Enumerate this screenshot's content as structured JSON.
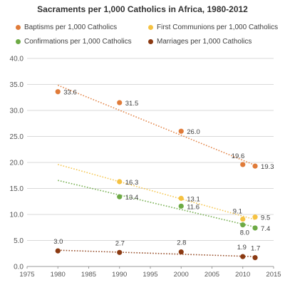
{
  "chart_data": {
    "type": "scatter",
    "title": "Sacraments per 1,000 Catholics in Africa, 1980-2012",
    "xlabel": "",
    "ylabel": "",
    "xlim": [
      1975,
      2015
    ],
    "ylim": [
      0,
      40
    ],
    "x_ticks": [
      1975,
      1980,
      1985,
      1990,
      1995,
      2000,
      2005,
      2010,
      2015
    ],
    "y_ticks": [
      "0.0",
      "5.0",
      "10.0",
      "15.0",
      "20.0",
      "25.0",
      "30.0",
      "35.0",
      "40.0"
    ],
    "grid": "horizontal",
    "legend_position": "top",
    "trendlines": "linear, dotted",
    "series": [
      {
        "name": "Baptisms per 1,000 Catholics",
        "color": "#E07B39",
        "x": [
          1980,
          1990,
          2000,
          2010,
          2012
        ],
        "values": [
          33.6,
          31.5,
          26.0,
          19.6,
          19.3
        ],
        "labels": [
          "33.6",
          "31.5",
          "26.0",
          "19.6",
          "19.3"
        ]
      },
      {
        "name": "First Communions per 1,000 Catholics",
        "color": "#F5C242",
        "x": [
          1990,
          2000,
          2010,
          2012
        ],
        "values": [
          16.3,
          13.1,
          9.1,
          9.5
        ],
        "labels": [
          "16.3",
          "13.1",
          "9.1",
          "9.5"
        ]
      },
      {
        "name": "Confirmations per 1,000 Catholics",
        "color": "#6DAA45",
        "x": [
          1990,
          2000,
          2010,
          2012
        ],
        "values": [
          13.4,
          11.6,
          8.0,
          7.4
        ],
        "labels": [
          "13.4",
          "11.6",
          "8.0",
          "7.4"
        ]
      },
      {
        "name": "Marriages per 1,000 Catholics",
        "color": "#8B3A12",
        "x": [
          1980,
          1990,
          2000,
          2010,
          2012
        ],
        "values": [
          3.0,
          2.7,
          2.8,
          1.9,
          1.7
        ],
        "labels": [
          "3.0",
          "2.7",
          "2.8",
          "1.9",
          "1.7"
        ]
      }
    ]
  }
}
